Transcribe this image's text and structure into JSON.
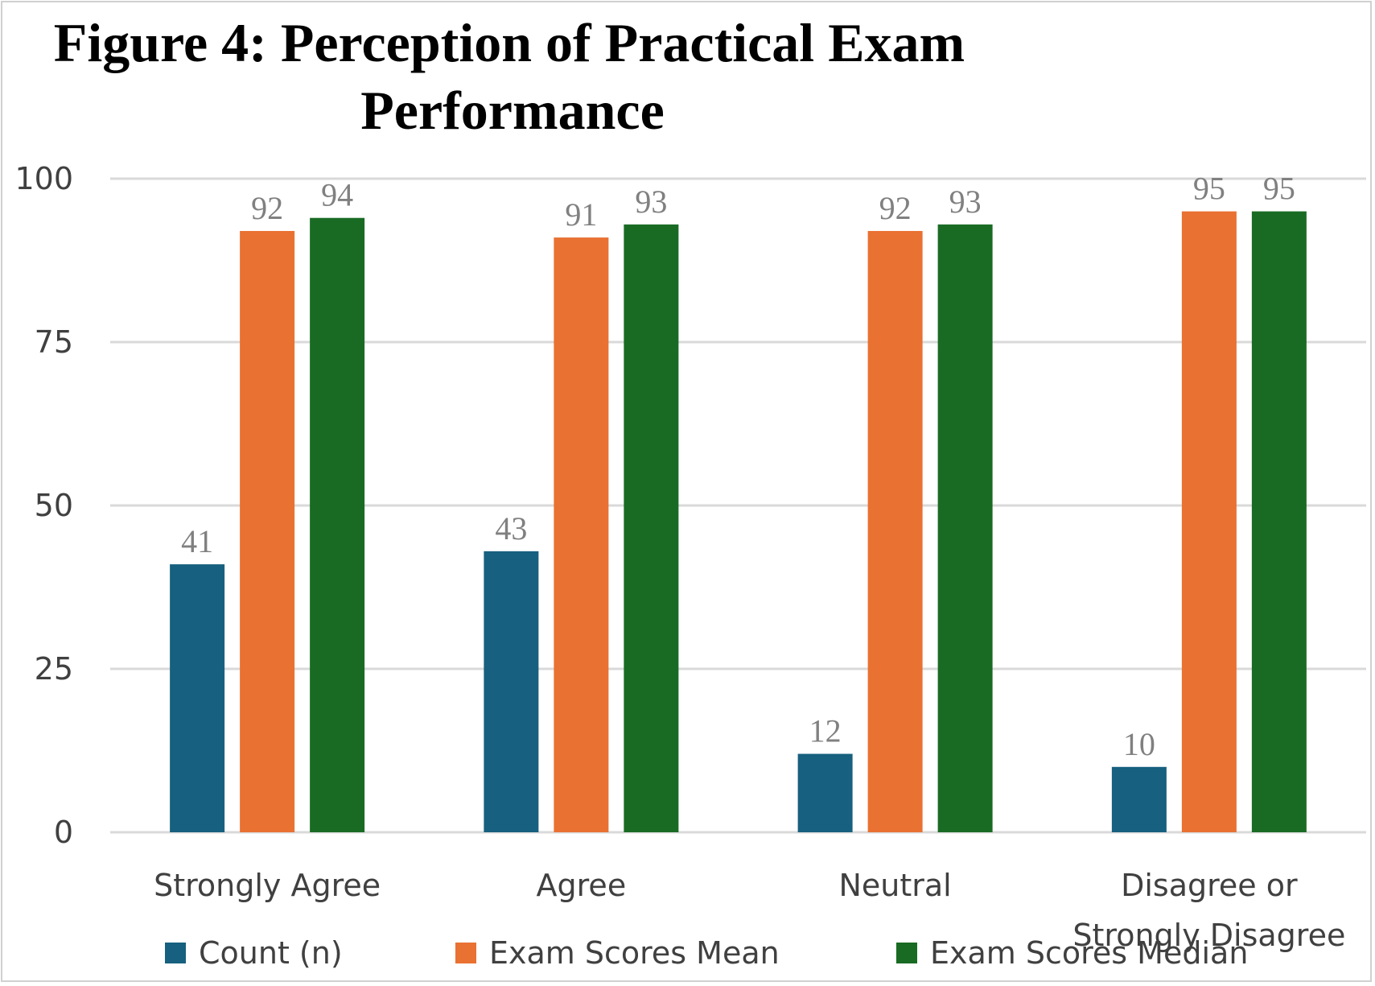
{
  "chart_data": {
    "type": "bar",
    "title": "Figure 4: Perception of Practical Exam Performance",
    "title_lines": [
      "Figure 4: Perception of Practical Exam",
      "Performance"
    ],
    "categories": [
      "Strongly Agree",
      "Agree",
      "Neutral",
      "Disagree or Strongly Disagree"
    ],
    "category_lines": [
      [
        "Strongly Agree"
      ],
      [
        "Agree"
      ],
      [
        "Neutral"
      ],
      [
        "Disagree or",
        "Strongly Disagree"
      ]
    ],
    "series": [
      {
        "name": "Count (n)",
        "values": [
          41,
          43,
          12,
          10
        ],
        "color": "#17607f"
      },
      {
        "name": "Exam Scores Mean",
        "values": [
          92,
          91,
          92,
          95
        ],
        "color": "#e97132"
      },
      {
        "name": "Exam Scores Median",
        "values": [
          94,
          93,
          93,
          95
        ],
        "color": "#196b24"
      }
    ],
    "yticks": [
      0,
      25,
      50,
      75,
      100
    ],
    "ylim": [
      0,
      100
    ],
    "xlabel": "",
    "ylabel": "",
    "grid": true,
    "legend_position": "bottom",
    "data_labels": true
  }
}
